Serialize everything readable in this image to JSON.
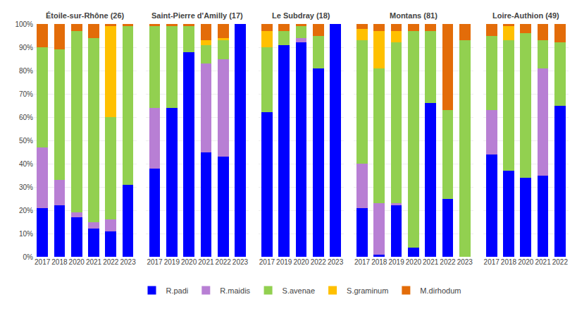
{
  "chart_data": [
    {
      "type": "bar",
      "stacked": true,
      "grid": true,
      "legend": "bottom",
      "title": "Étoile-sur-Rhône (26)",
      "categories": [
        "2017",
        "2018",
        "2020",
        "2021",
        "2022",
        "2023"
      ],
      "series": [
        {
          "name": "R.padi",
          "color": "#0000FF",
          "values": [
            21,
            22,
            17,
            12,
            11,
            31
          ]
        },
        {
          "name": "R.maidis",
          "color": "#B87FD4",
          "values": [
            26,
            11,
            2,
            3,
            5,
            0
          ]
        },
        {
          "name": "S.avenae",
          "color": "#92D050",
          "values": [
            43,
            56,
            78,
            79,
            44,
            68
          ]
        },
        {
          "name": "S.graminum",
          "color": "#FFC000",
          "values": [
            0,
            0,
            0,
            0,
            39,
            0
          ]
        },
        {
          "name": "M.dirhodum",
          "color": "#E36C09",
          "values": [
            10,
            11,
            3,
            6,
            1,
            1
          ]
        }
      ],
      "ylim": [
        0,
        100
      ],
      "yticks": [
        {
          "value": 0,
          "label": "0%"
        },
        {
          "value": 10,
          "label": "10%"
        },
        {
          "value": 20,
          "label": "20%"
        },
        {
          "value": 30,
          "label": "30%"
        },
        {
          "value": 40,
          "label": "40%"
        },
        {
          "value": 50,
          "label": "50%"
        },
        {
          "value": 60,
          "label": "60%"
        },
        {
          "value": 70,
          "label": "70%"
        },
        {
          "value": 80,
          "label": "80%"
        },
        {
          "value": 90,
          "label": "90%"
        },
        {
          "value": 100,
          "label": "100%"
        }
      ]
    },
    {
      "type": "bar",
      "stacked": true,
      "grid": true,
      "tick_labels": "x",
      "title": "Saint-Pierre d'Amilly (17)",
      "categories": [
        "2017",
        "2019",
        "2020",
        "2021",
        "2022",
        "2023"
      ],
      "series": [
        {
          "name": "R.padi",
          "color": "#0000FF",
          "values": [
            38,
            64,
            88,
            45,
            43,
            100
          ]
        },
        {
          "name": "R.maidis",
          "color": "#B87FD4",
          "values": [
            26,
            0,
            0,
            38,
            42,
            0
          ]
        },
        {
          "name": "S.avenae",
          "color": "#92D050",
          "values": [
            35,
            35,
            11,
            8,
            8,
            0
          ]
        },
        {
          "name": "S.graminum",
          "color": "#FFC000",
          "values": [
            0,
            0,
            0,
            2,
            1,
            0
          ]
        },
        {
          "name": "M.dirhodum",
          "color": "#E36C09",
          "values": [
            1,
            1,
            1,
            7,
            6,
            0
          ]
        }
      ],
      "ylim": [
        0,
        100
      ],
      "yticks": [
        0,
        10,
        20,
        30,
        40,
        50,
        60,
        70,
        80,
        90,
        100
      ]
    },
    {
      "type": "bar",
      "stacked": true,
      "grid": true,
      "tick_labels": "x",
      "title": "Le Subdray (18)",
      "categories": [
        "2017",
        "2019",
        "2020",
        "2022",
        "2023"
      ],
      "series": [
        {
          "name": "R.padi",
          "color": "#0000FF",
          "values": [
            62,
            91,
            92,
            81,
            100
          ]
        },
        {
          "name": "R.maidis",
          "color": "#B87FD4",
          "values": [
            0,
            0,
            2,
            0,
            0
          ]
        },
        {
          "name": "S.avenae",
          "color": "#92D050",
          "values": [
            28,
            6,
            5,
            14,
            0
          ]
        },
        {
          "name": "S.graminum",
          "color": "#FFC000",
          "values": [
            7,
            0,
            0,
            0,
            0
          ]
        },
        {
          "name": "M.dirhodum",
          "color": "#E36C09",
          "values": [
            3,
            3,
            1,
            5,
            0
          ]
        }
      ],
      "ylim": [
        0,
        100
      ],
      "yticks": [
        0,
        10,
        20,
        30,
        40,
        50,
        60,
        70,
        80,
        90,
        100
      ]
    },
    {
      "type": "bar",
      "stacked": true,
      "grid": true,
      "tick_labels": "x",
      "title": "Montans (81)",
      "categories": [
        "2017",
        "2018",
        "2019",
        "2020",
        "2021",
        "2022",
        "2023"
      ],
      "series": [
        {
          "name": "R.padi",
          "color": "#0000FF",
          "values": [
            21,
            1,
            22,
            4,
            66,
            25,
            0
          ]
        },
        {
          "name": "R.maidis",
          "color": "#B87FD4",
          "values": [
            19,
            22,
            1,
            0,
            0,
            0,
            0
          ]
        },
        {
          "name": "S.avenae",
          "color": "#92D050",
          "values": [
            53,
            58,
            69,
            93,
            31,
            38,
            93
          ]
        },
        {
          "name": "S.graminum",
          "color": "#FFC000",
          "values": [
            5,
            16,
            5,
            0,
            0,
            0,
            0
          ]
        },
        {
          "name": "M.dirhodum",
          "color": "#E36C09",
          "values": [
            2,
            3,
            3,
            3,
            3,
            37,
            7
          ]
        }
      ],
      "ylim": [
        0,
        100
      ],
      "yticks": [
        0,
        10,
        20,
        30,
        40,
        50,
        60,
        70,
        80,
        90,
        100
      ]
    },
    {
      "type": "bar",
      "stacked": true,
      "grid": true,
      "tick_labels": "x",
      "title": "Loire-Authion (49)",
      "categories": [
        "2017",
        "2018",
        "2020",
        "2021",
        "2022"
      ],
      "series": [
        {
          "name": "R.padi",
          "color": "#0000FF",
          "values": [
            44,
            37,
            34,
            35,
            65
          ]
        },
        {
          "name": "R.maidis",
          "color": "#B87FD4",
          "values": [
            19,
            0,
            0,
            46,
            0
          ]
        },
        {
          "name": "S.avenae",
          "color": "#92D050",
          "values": [
            32,
            56,
            62,
            12,
            27
          ]
        },
        {
          "name": "S.graminum",
          "color": "#FFC000",
          "values": [
            0,
            6,
            0,
            0,
            0
          ]
        },
        {
          "name": "M.dirhodum",
          "color": "#E36C09",
          "values": [
            5,
            1,
            4,
            7,
            8
          ]
        }
      ],
      "ylim": [
        0,
        100
      ],
      "yticks": [
        0,
        10,
        20,
        30,
        40,
        50,
        60,
        70,
        80,
        90,
        100
      ]
    }
  ]
}
